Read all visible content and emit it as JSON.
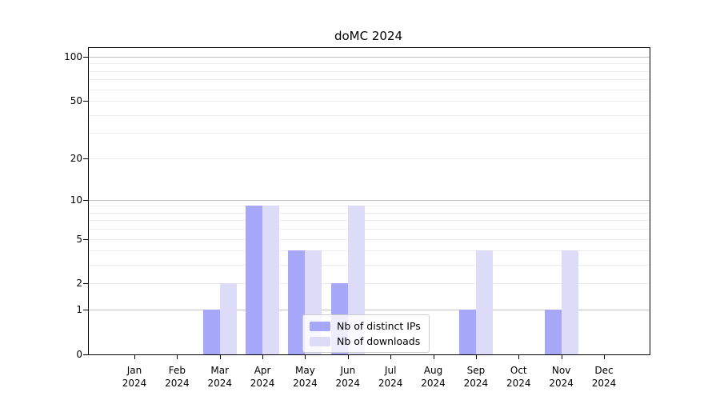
{
  "chart_data": {
    "type": "bar",
    "title": "doMC 2024",
    "categories": [
      "Jan",
      "Feb",
      "Mar",
      "Apr",
      "May",
      "Jun",
      "Jul",
      "Aug",
      "Sep",
      "Oct",
      "Nov",
      "Dec"
    ],
    "year_label": "2024",
    "series": [
      {
        "name": "Nb of distinct IPs",
        "color": "#a7a7f9",
        "values": [
          0,
          0,
          1,
          9,
          4,
          2,
          0,
          0,
          1,
          0,
          1,
          0
        ]
      },
      {
        "name": "Nb of downloads",
        "color": "#dcdcf9",
        "values": [
          0,
          0,
          2,
          9,
          4,
          9,
          0,
          0,
          4,
          0,
          4,
          0
        ]
      }
    ],
    "yscale": "log1p",
    "ylim": [
      0,
      115
    ],
    "ytick_labels": [
      "0",
      "1",
      "2",
      "5",
      "10",
      "20",
      "50",
      "100"
    ],
    "yticks": [
      0,
      1,
      2,
      5,
      10,
      20,
      50,
      100
    ],
    "minor_gridlines": [
      2,
      3,
      4,
      5,
      6,
      7,
      8,
      9,
      20,
      30,
      40,
      50,
      60,
      70,
      80,
      90
    ],
    "major_gridlines": [
      1,
      10,
      100
    ],
    "grid_on": true,
    "legend_position": "lower-center",
    "colors": {
      "grid_minor": "#ececec",
      "grid_major": "#c3c3c3",
      "axis": "#000000",
      "background": "#ffffff"
    }
  }
}
